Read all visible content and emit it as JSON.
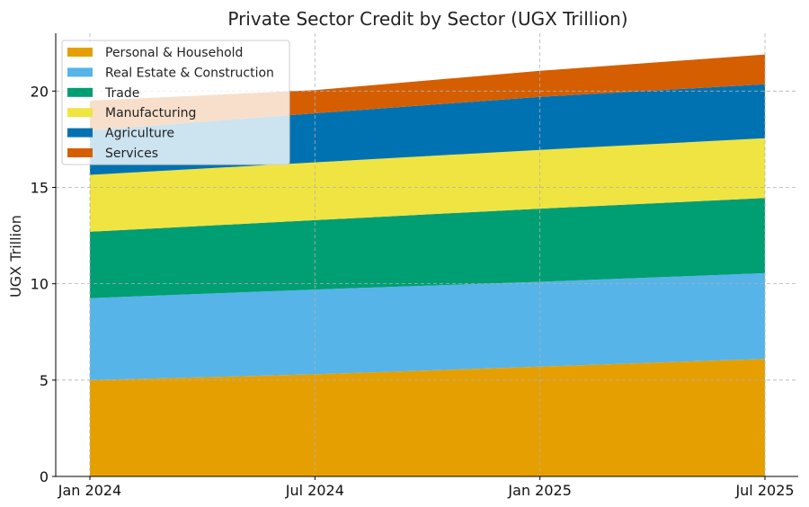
{
  "chart_data": {
    "type": "area",
    "stacked": true,
    "title": "Private Sector Credit by Sector (UGX Trillion)",
    "xlabel": "",
    "ylabel": "UGX Trillion",
    "x": [
      "Jan 2024",
      "Jul 2024",
      "Jan 2025",
      "Jul 2025"
    ],
    "ylim": [
      0,
      23
    ],
    "yticks": [
      0,
      5,
      10,
      15,
      20
    ],
    "grid": true,
    "legend_position": "top-left",
    "series": [
      {
        "name": "Personal & Household",
        "color": "#E69F00",
        "values": [
          5.0,
          5.3,
          5.7,
          6.1
        ]
      },
      {
        "name": "Real Estate & Construction",
        "color": "#56B4E9",
        "values": [
          4.25,
          4.4,
          4.4,
          4.45
        ]
      },
      {
        "name": "Trade",
        "color": "#009E73",
        "values": [
          3.45,
          3.6,
          3.8,
          3.9
        ]
      },
      {
        "name": "Manufacturing",
        "color": "#F0E442",
        "values": [
          2.95,
          3.0,
          3.05,
          3.1
        ]
      },
      {
        "name": "Agriculture",
        "color": "#0072B2",
        "values": [
          2.3,
          2.55,
          2.75,
          2.8
        ]
      },
      {
        "name": "Services",
        "color": "#D55E00",
        "values": [
          1.55,
          1.2,
          1.35,
          1.55
        ]
      }
    ]
  }
}
